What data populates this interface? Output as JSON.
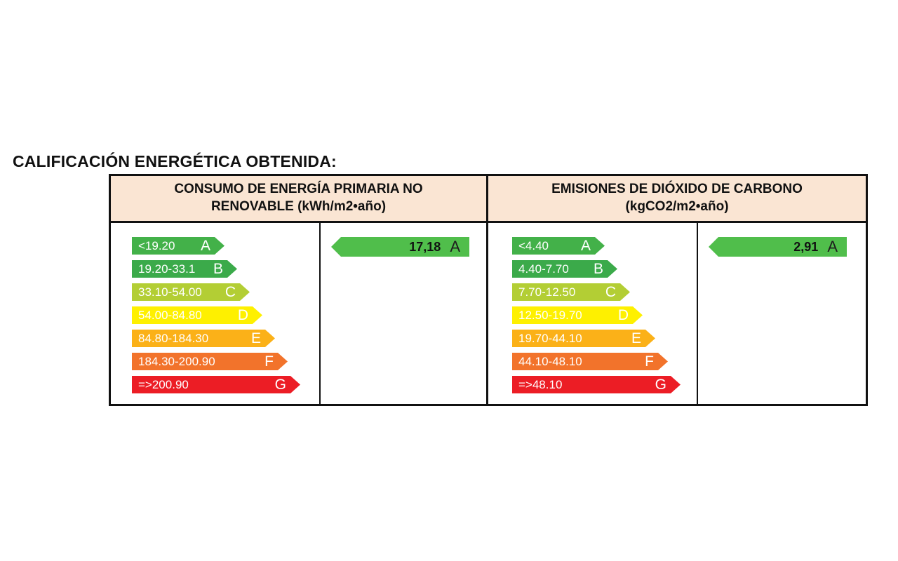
{
  "page": {
    "title": "CALIFICACIÓN ENERGÉTICA OBTENIDA:"
  },
  "colors": {
    "header_bg": "#FAE5D3",
    "border": "#111111",
    "result_arrow": "#50BE4B",
    "A": "#43B149",
    "B": "#3BAA4A",
    "C": "#B3CE34",
    "D": "#FEF000",
    "E": "#FBB118",
    "F": "#F2732B",
    "G": "#EC1D25"
  },
  "table": {
    "columns": [
      {
        "header_line1": "CONSUMO  DE ENERGÍA PRIMARIA NO",
        "header_line2": "RENOVABLE (kWh/m2•año)",
        "scale": [
          {
            "range": "<19.20",
            "letter": "A"
          },
          {
            "range": "19.20-33.1",
            "letter": "B"
          },
          {
            "range": "33.10-54.00",
            "letter": "C"
          },
          {
            "range": "54.00-84.80",
            "letter": "D"
          },
          {
            "range": "84.80-184.30",
            "letter": "E"
          },
          {
            "range": "184.30-200.90",
            "letter": "F"
          },
          {
            "range": "=>200.90",
            "letter": "G"
          }
        ],
        "result": {
          "value": "17,18",
          "letter": "A"
        }
      },
      {
        "header_line1": "EMISIONES DE DIÓXIDO DE CARBONO",
        "header_line2": "(kgCO2/m2•año)",
        "scale": [
          {
            "range": "<4.40",
            "letter": "A"
          },
          {
            "range": "4.40-7.70",
            "letter": "B"
          },
          {
            "range": "7.70-12.50",
            "letter": "C"
          },
          {
            "range": "12.50-19.70",
            "letter": "D"
          },
          {
            "range": "19.70-44.10",
            "letter": "E"
          },
          {
            "range": "44.10-48.10",
            "letter": "F"
          },
          {
            "range": "=>48.10",
            "letter": "G"
          }
        ],
        "result": {
          "value": "2,91",
          "letter": "A"
        }
      }
    ]
  }
}
